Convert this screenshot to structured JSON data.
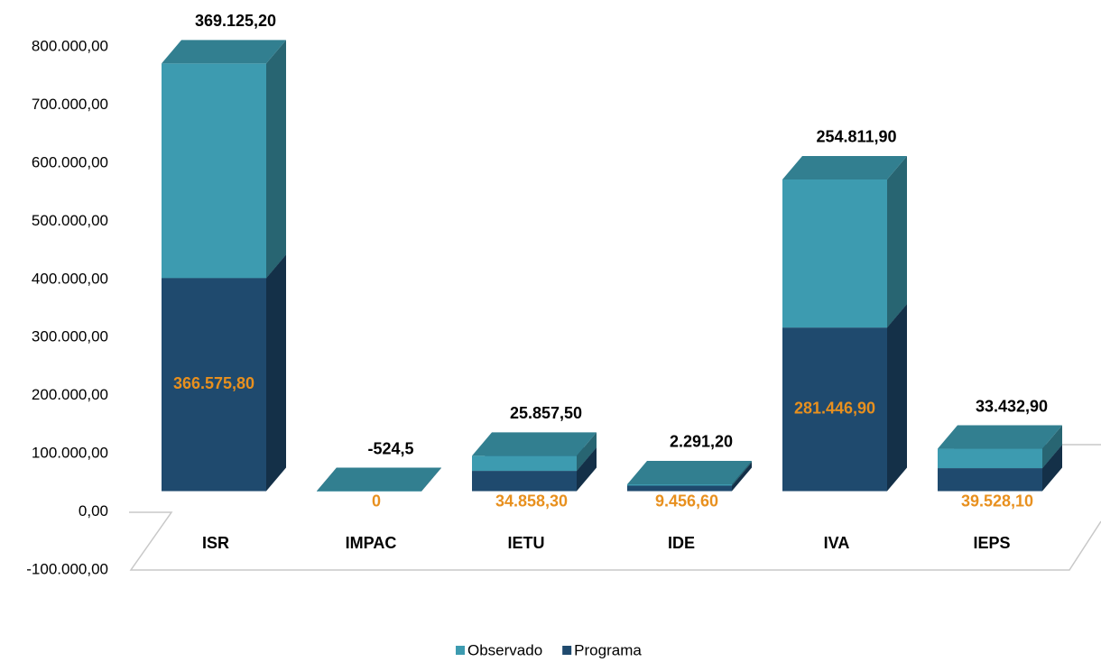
{
  "chart_data": {
    "type": "bar3d_stacked",
    "categories": [
      "ISR",
      "IMPAC",
      "IETU",
      "IDE",
      "IVA",
      "IEPS"
    ],
    "series": [
      {
        "name": "Programa",
        "color": "#1f4a6e",
        "values": [
          366575.8,
          0,
          34858.3,
          9456.6,
          281446.9,
          39528.1
        ],
        "value_labels": [
          "366.575,80",
          "0",
          "34.858,30",
          "9.456,60",
          "281.446,90",
          "39.528,10"
        ]
      },
      {
        "name": "Observado",
        "color": "#3d9bb0",
        "values": [
          369125.2,
          -524.5,
          25857.5,
          2291.2,
          254811.9,
          33432.9
        ],
        "value_labels": [
          "369.125,20",
          "-524,5",
          "25.857,50",
          "2.291,20",
          "254.811,90",
          "33.432,90"
        ]
      }
    ],
    "ylim": [
      -100000,
      800000
    ],
    "yticks": [
      {
        "value": -100000,
        "label": "-100.000,00"
      },
      {
        "value": 0,
        "label": "0,00"
      },
      {
        "value": 100000,
        "label": "100.000,00"
      },
      {
        "value": 200000,
        "label": "200.000,00"
      },
      {
        "value": 300000,
        "label": "300.000,00"
      },
      {
        "value": 400000,
        "label": "400.000,00"
      },
      {
        "value": 500000,
        "label": "500.000,00"
      },
      {
        "value": 600000,
        "label": "600.000,00"
      },
      {
        "value": 700000,
        "label": "700.000,00"
      },
      {
        "value": 800000,
        "label": "800.000,00"
      }
    ],
    "legend": "bottom"
  }
}
